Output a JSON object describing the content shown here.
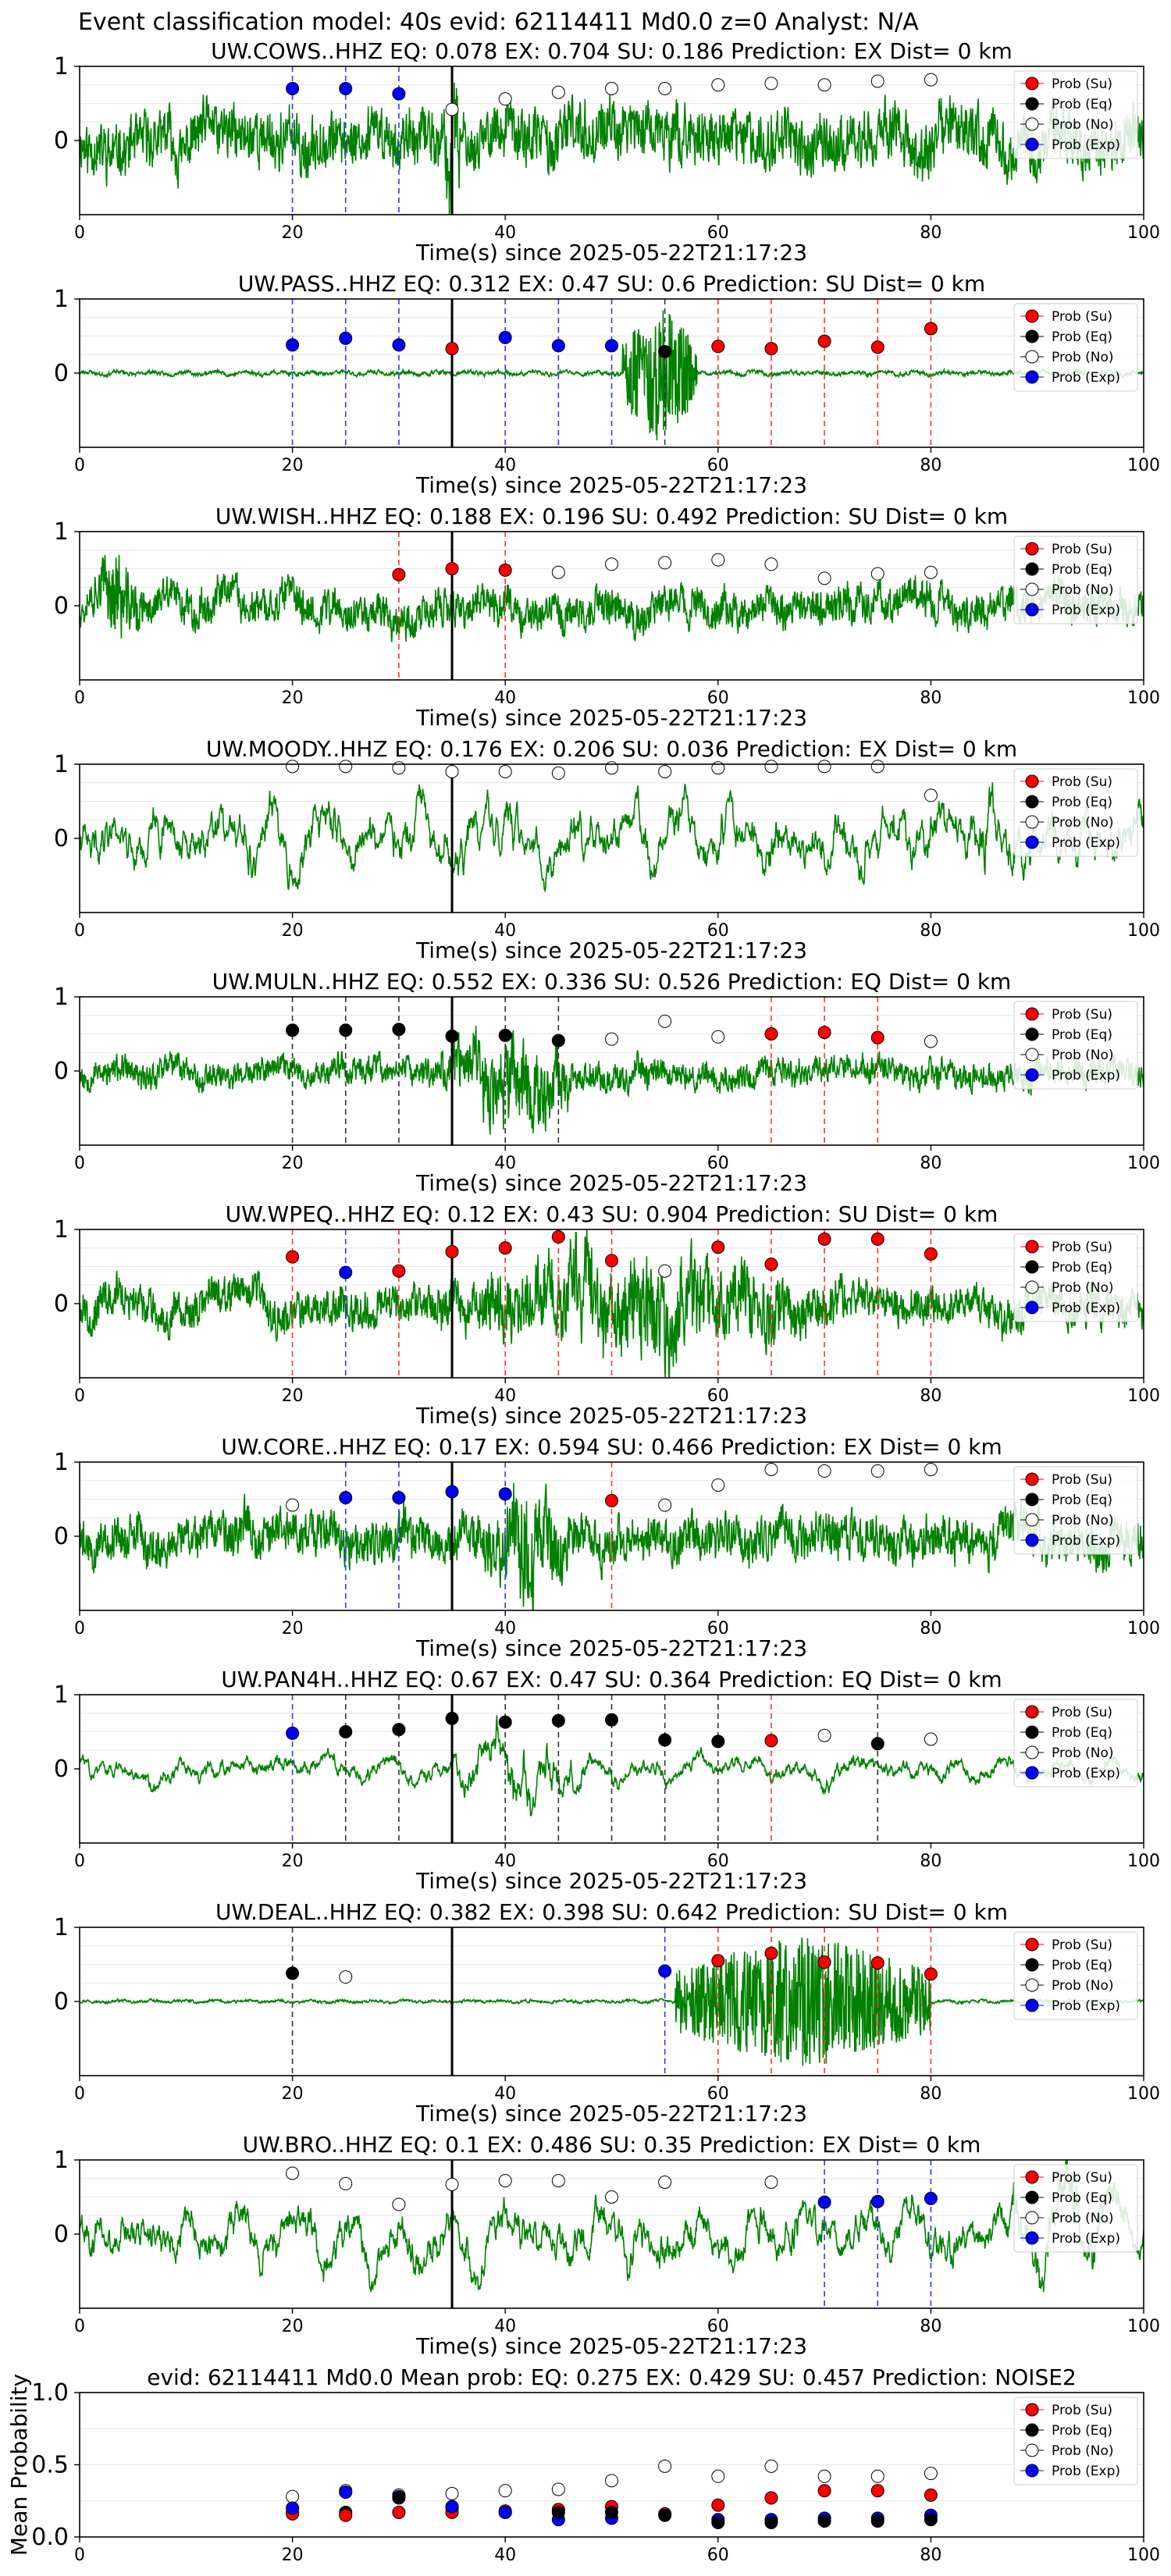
{
  "suptitle": "Event classification model: 40s evid: 62114411 Md0.0 z=0 Analyst: N/A",
  "xlabel": "Time(s) since 2025-05-22T21:17:23",
  "legend": [
    "Prob (Su)",
    "Prob (Eq)",
    "Prob (No)",
    "Prob (Exp)"
  ],
  "class_colors": {
    "su": "#ff0000",
    "eq": "#000000",
    "no": "#ffffff",
    "exp": "#0000ff",
    "trace": "#008000"
  },
  "chart_data": [
    {
      "type": "line",
      "station": "UW.COWS..HHZ",
      "title": "UW.COWS..HHZ   EQ: 0.078  EX: 0.704  SU: 0.186   Prediction: EX    Dist= 0 km",
      "xlim": [
        0,
        100
      ],
      "ylim": [
        -1,
        1
      ],
      "yticks": [
        0,
        1
      ],
      "xticks": [
        0,
        20,
        40,
        60,
        80,
        100
      ],
      "pick_time": 35,
      "trace": {
        "seed": 11,
        "char": "noise",
        "amp": 0.45,
        "from": 0,
        "burst": [
          34,
          36,
          1.2
        ]
      },
      "points": [
        [
          20,
          0.7,
          "exp"
        ],
        [
          25,
          0.7,
          "exp"
        ],
        [
          30,
          0.63,
          "exp"
        ],
        [
          35,
          0.42,
          "no"
        ],
        [
          40,
          0.56,
          "no"
        ],
        [
          45,
          0.65,
          "no"
        ],
        [
          50,
          0.7,
          "no"
        ],
        [
          55,
          0.7,
          "no"
        ],
        [
          60,
          0.75,
          "no"
        ],
        [
          65,
          0.77,
          "no"
        ],
        [
          70,
          0.75,
          "no"
        ],
        [
          75,
          0.8,
          "no"
        ],
        [
          80,
          0.82,
          "no"
        ]
      ]
    },
    {
      "type": "line",
      "station": "UW.PASS..HHZ",
      "title": "UW.PASS..HHZ   EQ: 0.312  EX: 0.47  SU: 0.6   Prediction: SU    Dist= 0 km",
      "xlim": [
        0,
        100
      ],
      "ylim": [
        -1,
        1
      ],
      "yticks": [
        0,
        1
      ],
      "xticks": [
        0,
        20,
        40,
        60,
        80,
        100
      ],
      "pick_time": 35,
      "trace": {
        "seed": 23,
        "char": "quiet",
        "amp": 0.06,
        "from": 0,
        "burst": [
          51,
          58,
          0.95
        ]
      },
      "points": [
        [
          20,
          0.38,
          "exp"
        ],
        [
          25,
          0.47,
          "exp"
        ],
        [
          30,
          0.38,
          "exp"
        ],
        [
          35,
          0.33,
          "su"
        ],
        [
          40,
          0.48,
          "exp"
        ],
        [
          45,
          0.37,
          "exp"
        ],
        [
          50,
          0.37,
          "exp"
        ],
        [
          55,
          0.29,
          "eq"
        ],
        [
          60,
          0.36,
          "su"
        ],
        [
          65,
          0.33,
          "su"
        ],
        [
          70,
          0.43,
          "su"
        ],
        [
          75,
          0.35,
          "su"
        ],
        [
          80,
          0.6,
          "su"
        ]
      ]
    },
    {
      "type": "line",
      "station": "UW.WISH..HHZ",
      "title": "UW.WISH..HHZ   EQ: 0.188  EX: 0.196  SU: 0.492   Prediction: SU    Dist= 0 km",
      "xlim": [
        0,
        100
      ],
      "ylim": [
        -1,
        1
      ],
      "yticks": [
        0,
        1
      ],
      "xticks": [
        0,
        20,
        40,
        60,
        80,
        100
      ],
      "pick_time": 35,
      "trace": {
        "seed": 37,
        "char": "noise",
        "amp": 0.3,
        "from": 0,
        "burst": [
          1,
          6,
          0.75
        ]
      },
      "points": [
        [
          30,
          0.42,
          "su"
        ],
        [
          35,
          0.5,
          "su"
        ],
        [
          40,
          0.48,
          "su"
        ],
        [
          45,
          0.45,
          "no"
        ],
        [
          50,
          0.56,
          "no"
        ],
        [
          55,
          0.58,
          "no"
        ],
        [
          60,
          0.62,
          "no"
        ],
        [
          65,
          0.56,
          "no"
        ],
        [
          70,
          0.37,
          "no"
        ],
        [
          75,
          0.43,
          "no"
        ],
        [
          80,
          0.45,
          "no"
        ]
      ]
    },
    {
      "type": "line",
      "station": "UW.MOODY..HHZ",
      "title": "UW.MOODY..HHZ   EQ: 0.176  EX: 0.206  SU: 0.036   Prediction: EX    Dist= 0 km",
      "xlim": [
        0,
        100
      ],
      "ylim": [
        -1,
        1
      ],
      "yticks": [
        0,
        1
      ],
      "xticks": [
        0,
        20,
        40,
        60,
        80,
        100
      ],
      "pick_time": 35,
      "trace": {
        "seed": 41,
        "char": "wave",
        "amp": 0.55,
        "from": 0,
        "burst": [
          83,
          87,
          0.9
        ]
      },
      "points": [
        [
          20,
          0.97,
          "no"
        ],
        [
          25,
          0.97,
          "no"
        ],
        [
          30,
          0.95,
          "no"
        ],
        [
          35,
          0.9,
          "no"
        ],
        [
          40,
          0.9,
          "no"
        ],
        [
          45,
          0.88,
          "no"
        ],
        [
          50,
          0.95,
          "no"
        ],
        [
          55,
          0.9,
          "no"
        ],
        [
          60,
          0.95,
          "no"
        ],
        [
          65,
          0.97,
          "no"
        ],
        [
          70,
          0.97,
          "no"
        ],
        [
          75,
          0.97,
          "no"
        ],
        [
          80,
          0.58,
          "no"
        ]
      ]
    },
    {
      "type": "line",
      "station": "UW.MULN..HHZ",
      "title": "UW.MULN..HHZ   EQ: 0.552  EX: 0.336  SU: 0.526   Prediction: EQ    Dist= 0 km",
      "xlim": [
        0,
        100
      ],
      "ylim": [
        -1,
        1
      ],
      "yticks": [
        0,
        1
      ],
      "xticks": [
        0,
        20,
        40,
        60,
        80,
        100
      ],
      "pick_time": 35,
      "trace": {
        "seed": 53,
        "char": "noise",
        "amp": 0.22,
        "from": 0,
        "burst": [
          34,
          47,
          0.75
        ]
      },
      "points": [
        [
          20,
          0.55,
          "eq"
        ],
        [
          25,
          0.55,
          "eq"
        ],
        [
          30,
          0.56,
          "eq"
        ],
        [
          35,
          0.47,
          "eq"
        ],
        [
          40,
          0.48,
          "eq"
        ],
        [
          45,
          0.41,
          "eq"
        ],
        [
          50,
          0.43,
          "no"
        ],
        [
          55,
          0.67,
          "no"
        ],
        [
          60,
          0.46,
          "no"
        ],
        [
          65,
          0.5,
          "su"
        ],
        [
          70,
          0.52,
          "su"
        ],
        [
          75,
          0.45,
          "su"
        ],
        [
          80,
          0.4,
          "no"
        ]
      ]
    },
    {
      "type": "line",
      "station": "UW.WPEQ..HHZ",
      "title": "UW.WPEQ..HHZ   EQ: 0.12  EX: 0.43  SU: 0.904   Prediction: SU    Dist= 0 km",
      "xlim": [
        0,
        100
      ],
      "ylim": [
        -1,
        1
      ],
      "yticks": [
        0,
        1
      ],
      "xticks": [
        0,
        20,
        40,
        60,
        80,
        100
      ],
      "pick_time": 35,
      "trace": {
        "seed": 67,
        "char": "noise",
        "amp": 0.3,
        "from": 0,
        "burst": [
          34,
          72,
          0.8
        ]
      },
      "points": [
        [
          20,
          0.63,
          "su"
        ],
        [
          25,
          0.42,
          "exp"
        ],
        [
          30,
          0.44,
          "su"
        ],
        [
          35,
          0.7,
          "su"
        ],
        [
          40,
          0.75,
          "su"
        ],
        [
          45,
          0.9,
          "su"
        ],
        [
          50,
          0.58,
          "su"
        ],
        [
          55,
          0.44,
          "no"
        ],
        [
          60,
          0.76,
          "su"
        ],
        [
          65,
          0.53,
          "su"
        ],
        [
          70,
          0.87,
          "su"
        ],
        [
          75,
          0.87,
          "su"
        ],
        [
          80,
          0.67,
          "su"
        ]
      ]
    },
    {
      "type": "line",
      "station": "UW.CORE..HHZ",
      "title": "UW.CORE..HHZ   EQ: 0.17  EX: 0.594  SU: 0.466   Prediction: EX    Dist= 0 km",
      "xlim": [
        0,
        100
      ],
      "ylim": [
        -1,
        1
      ],
      "yticks": [
        0,
        1
      ],
      "xticks": [
        0,
        20,
        40,
        60,
        80,
        100
      ],
      "pick_time": 35,
      "trace": {
        "seed": 79,
        "char": "noise",
        "amp": 0.35,
        "from": 0,
        "burst": [
          38,
          46,
          0.95
        ]
      },
      "points": [
        [
          20,
          0.42,
          "no"
        ],
        [
          25,
          0.52,
          "exp"
        ],
        [
          30,
          0.52,
          "exp"
        ],
        [
          35,
          0.6,
          "exp"
        ],
        [
          40,
          0.57,
          "exp"
        ],
        [
          50,
          0.48,
          "su"
        ],
        [
          55,
          0.42,
          "no"
        ],
        [
          60,
          0.69,
          "no"
        ],
        [
          65,
          0.9,
          "no"
        ],
        [
          70,
          0.88,
          "no"
        ],
        [
          75,
          0.88,
          "no"
        ],
        [
          80,
          0.9,
          "no"
        ]
      ]
    },
    {
      "type": "line",
      "station": "UW.PAN4H..HHZ",
      "title": "UW.PAN4H..HHZ   EQ: 0.67  EX: 0.47  SU: 0.364   Prediction: EQ    Dist= 0 km",
      "xlim": [
        0,
        100
      ],
      "ylim": [
        -1,
        1
      ],
      "yticks": [
        0,
        1
      ],
      "xticks": [
        0,
        20,
        40,
        60,
        80,
        100
      ],
      "pick_time": 35,
      "trace": {
        "seed": 83,
        "char": "wave",
        "amp": 0.22,
        "from": 0,
        "burst": [
          35,
          48,
          0.75
        ]
      },
      "points": [
        [
          20,
          0.48,
          "exp"
        ],
        [
          25,
          0.5,
          "eq"
        ],
        [
          30,
          0.53,
          "eq"
        ],
        [
          35,
          0.68,
          "eq"
        ],
        [
          40,
          0.63,
          "eq"
        ],
        [
          45,
          0.65,
          "eq"
        ],
        [
          50,
          0.66,
          "eq"
        ],
        [
          55,
          0.39,
          "eq"
        ],
        [
          60,
          0.37,
          "eq"
        ],
        [
          65,
          0.38,
          "su"
        ],
        [
          70,
          0.45,
          "no"
        ],
        [
          75,
          0.34,
          "eq"
        ],
        [
          80,
          0.4,
          "no"
        ]
      ]
    },
    {
      "type": "line",
      "station": "UW.DEAL..HHZ",
      "title": "UW.DEAL..HHZ   EQ: 0.382  EX: 0.398  SU: 0.642   Prediction: SU    Dist= 0 km",
      "xlim": [
        0,
        100
      ],
      "ylim": [
        -1,
        1
      ],
      "yticks": [
        0,
        1
      ],
      "xticks": [
        0,
        20,
        40,
        60,
        80,
        100
      ],
      "pick_time": 35,
      "trace": {
        "seed": 97,
        "char": "quiet",
        "amp": 0.04,
        "from": 0,
        "burst": [
          56,
          80,
          0.95
        ]
      },
      "points": [
        [
          20,
          0.38,
          "eq"
        ],
        [
          25,
          0.33,
          "no"
        ],
        [
          55,
          0.41,
          "exp"
        ],
        [
          60,
          0.55,
          "su"
        ],
        [
          65,
          0.65,
          "su"
        ],
        [
          70,
          0.53,
          "su"
        ],
        [
          75,
          0.52,
          "su"
        ],
        [
          80,
          0.37,
          "su"
        ]
      ]
    },
    {
      "type": "line",
      "station": "UW.BRO..HHZ",
      "title": "UW.BRO..HHZ   EQ: 0.1  EX: 0.486  SU: 0.35   Prediction: EX    Dist= 0 km",
      "xlim": [
        0,
        100
      ],
      "ylim": [
        -1,
        1
      ],
      "yticks": [
        0,
        1
      ],
      "xticks": [
        0,
        20,
        40,
        60,
        80,
        100
      ],
      "pick_time": 35,
      "trace": {
        "seed": 101,
        "char": "wave",
        "amp": 0.5,
        "from": 0,
        "burst": [
          85,
          100,
          0.9
        ]
      },
      "points": [
        [
          20,
          0.82,
          "no"
        ],
        [
          25,
          0.68,
          "no"
        ],
        [
          30,
          0.4,
          "no"
        ],
        [
          35,
          0.67,
          "no"
        ],
        [
          40,
          0.72,
          "no"
        ],
        [
          45,
          0.72,
          "no"
        ],
        [
          50,
          0.5,
          "no"
        ],
        [
          55,
          0.7,
          "no"
        ],
        [
          65,
          0.7,
          "no"
        ],
        [
          70,
          0.43,
          "exp"
        ],
        [
          75,
          0.44,
          "exp"
        ],
        [
          80,
          0.48,
          "exp"
        ]
      ]
    },
    {
      "type": "scatter",
      "station": "Mean",
      "title": "evid: 62114411  Md0.0   Mean prob:   EQ: 0.275  EX: 0.429  SU: 0.457   Prediction: NOISE2",
      "ylabel": "Mean Probability",
      "xlim": [
        0,
        100
      ],
      "ylim": [
        0,
        1
      ],
      "yticks": [
        0,
        0.5,
        1
      ],
      "ytick_labels": [
        "0.0",
        "0.5",
        "1.0"
      ],
      "xticks": [
        0,
        20,
        40,
        60,
        80,
        100
      ],
      "points": [
        [
          20,
          0.28,
          "no"
        ],
        [
          20,
          0.17,
          "eq"
        ],
        [
          20,
          0.16,
          "su"
        ],
        [
          20,
          0.2,
          "exp"
        ],
        [
          25,
          0.32,
          "no"
        ],
        [
          25,
          0.17,
          "eq"
        ],
        [
          25,
          0.31,
          "exp"
        ],
        [
          25,
          0.15,
          "su"
        ],
        [
          30,
          0.29,
          "no"
        ],
        [
          30,
          0.28,
          "exp"
        ],
        [
          30,
          0.17,
          "su"
        ],
        [
          30,
          0.27,
          "eq"
        ],
        [
          35,
          0.3,
          "no"
        ],
        [
          35,
          0.2,
          "eq"
        ],
        [
          35,
          0.17,
          "su"
        ],
        [
          35,
          0.21,
          "exp"
        ],
        [
          40,
          0.32,
          "no"
        ],
        [
          40,
          0.17,
          "eq"
        ],
        [
          40,
          0.18,
          "su"
        ],
        [
          40,
          0.17,
          "exp"
        ],
        [
          45,
          0.33,
          "no"
        ],
        [
          45,
          0.19,
          "su"
        ],
        [
          45,
          0.12,
          "exp"
        ],
        [
          45,
          0.17,
          "eq"
        ],
        [
          50,
          0.39,
          "no"
        ],
        [
          50,
          0.21,
          "su"
        ],
        [
          50,
          0.13,
          "exp"
        ],
        [
          50,
          0.17,
          "eq"
        ],
        [
          55,
          0.49,
          "no"
        ],
        [
          55,
          0.16,
          "su"
        ],
        [
          55,
          0.15,
          "eq"
        ],
        [
          60,
          0.42,
          "no"
        ],
        [
          60,
          0.22,
          "su"
        ],
        [
          60,
          0.12,
          "exp"
        ],
        [
          60,
          0.1,
          "eq"
        ],
        [
          65,
          0.49,
          "no"
        ],
        [
          65,
          0.27,
          "su"
        ],
        [
          65,
          0.12,
          "exp"
        ],
        [
          65,
          0.1,
          "eq"
        ],
        [
          70,
          0.42,
          "no"
        ],
        [
          70,
          0.32,
          "su"
        ],
        [
          70,
          0.13,
          "exp"
        ],
        [
          70,
          0.11,
          "eq"
        ],
        [
          75,
          0.42,
          "no"
        ],
        [
          75,
          0.32,
          "su"
        ],
        [
          75,
          0.13,
          "exp"
        ],
        [
          75,
          0.11,
          "eq"
        ],
        [
          80,
          0.44,
          "no"
        ],
        [
          80,
          0.29,
          "su"
        ],
        [
          80,
          0.15,
          "exp"
        ],
        [
          80,
          0.12,
          "eq"
        ]
      ]
    }
  ]
}
